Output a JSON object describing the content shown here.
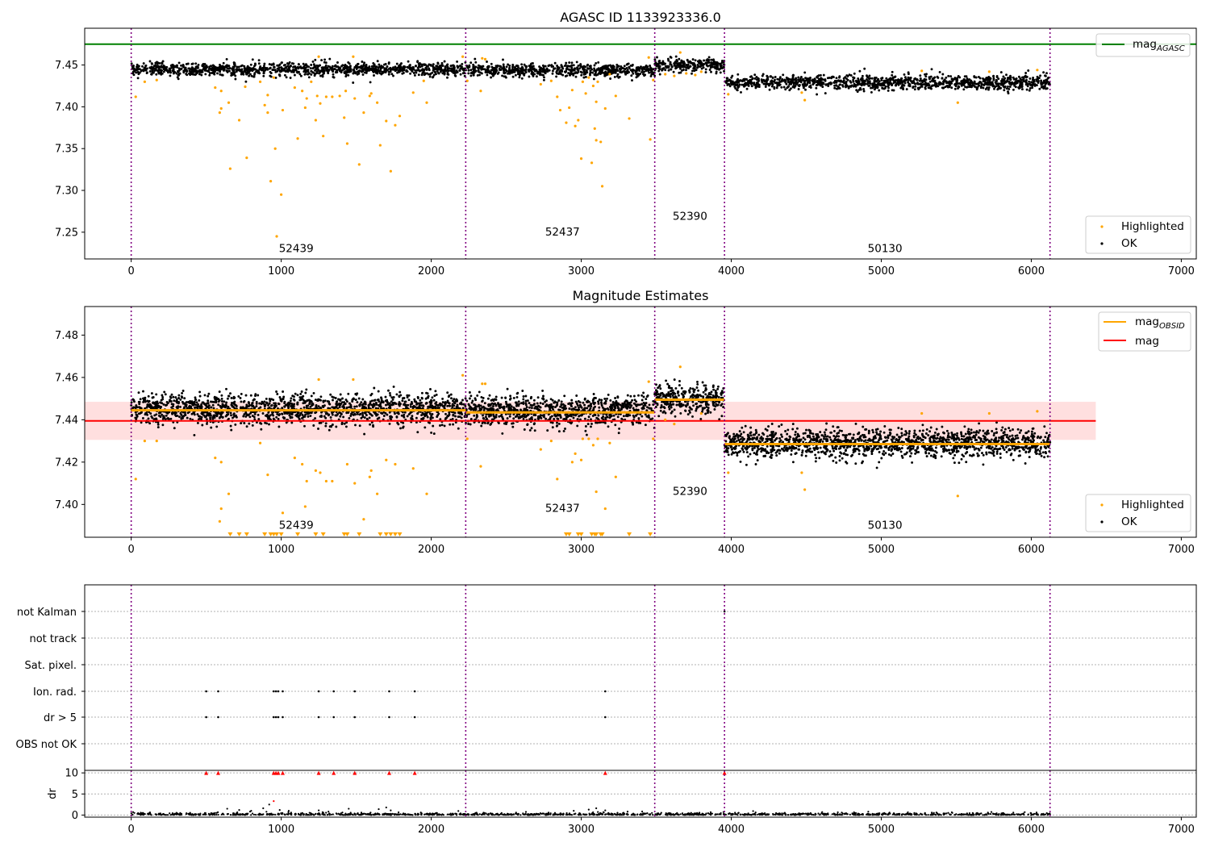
{
  "chart_data": [
    {
      "type": "scatter",
      "title": "AGASC ID 1133923336.0",
      "xlim": [
        -310,
        7100
      ],
      "ylim": [
        7.218,
        7.494
      ],
      "xticks": [
        0,
        1000,
        2000,
        3000,
        4000,
        5000,
        6000,
        7000
      ],
      "yticks": [
        7.25,
        7.3,
        7.35,
        7.4,
        7.45
      ],
      "obsid_boundaries": [
        0,
        2230,
        3490,
        3955,
        6125
      ],
      "obsids": [
        {
          "label": "52439",
          "x": 1100,
          "y": 7.226
        },
        {
          "label": "52437",
          "x": 2875,
          "y": 7.246
        },
        {
          "label": "52390",
          "x": 3725,
          "y": 7.265
        },
        {
          "label": "50130",
          "x": 5025,
          "y": 7.226
        }
      ],
      "reference_lines": [
        {
          "name": "mag_AGASC",
          "y": 7.475,
          "color": "#008000"
        }
      ],
      "series": [
        {
          "name": "Highlighted",
          "color": "#ffa500",
          "marker": "dot"
        },
        {
          "name": "OK",
          "color": "#000000",
          "marker": "dot"
        }
      ],
      "ok_segments": [
        {
          "x0": 0,
          "x1": 2230,
          "mean": 7.445,
          "spread": 0.007
        },
        {
          "x0": 2230,
          "x1": 3490,
          "mean": 7.444,
          "spread": 0.007
        },
        {
          "x0": 3490,
          "x1": 3955,
          "mean": 7.45,
          "spread": 0.007
        },
        {
          "x0": 3955,
          "x1": 6125,
          "mean": 7.429,
          "spread": 0.008
        }
      ],
      "highlighted_points": [
        [
          30,
          7.412
        ],
        [
          90,
          7.43
        ],
        [
          170,
          7.432
        ],
        [
          560,
          7.423
        ],
        [
          590,
          7.393
        ],
        [
          600,
          7.419
        ],
        [
          600,
          7.398
        ],
        [
          650,
          7.405
        ],
        [
          660,
          7.326
        ],
        [
          720,
          7.384
        ],
        [
          760,
          7.424
        ],
        [
          770,
          7.339
        ],
        [
          860,
          7.43
        ],
        [
          890,
          7.402
        ],
        [
          910,
          7.414
        ],
        [
          910,
          7.393
        ],
        [
          930,
          7.311
        ],
        [
          950,
          7.435
        ],
        [
          960,
          7.35
        ],
        [
          970,
          7.245
        ],
        [
          1000,
          7.295
        ],
        [
          1010,
          7.396
        ],
        [
          1090,
          7.423
        ],
        [
          1110,
          7.362
        ],
        [
          1140,
          7.419
        ],
        [
          1160,
          7.399
        ],
        [
          1170,
          7.41
        ],
        [
          1200,
          7.43
        ],
        [
          1230,
          7.384
        ],
        [
          1240,
          7.413
        ],
        [
          1250,
          7.46
        ],
        [
          1260,
          7.404
        ],
        [
          1280,
          7.365
        ],
        [
          1300,
          7.412
        ],
        [
          1340,
          7.412
        ],
        [
          1390,
          7.413
        ],
        [
          1420,
          7.387
        ],
        [
          1430,
          7.419
        ],
        [
          1440,
          7.356
        ],
        [
          1480,
          7.46
        ],
        [
          1490,
          7.41
        ],
        [
          1520,
          7.331
        ],
        [
          1550,
          7.393
        ],
        [
          1590,
          7.413
        ],
        [
          1600,
          7.416
        ],
        [
          1640,
          7.405
        ],
        [
          1660,
          7.354
        ],
        [
          1700,
          7.383
        ],
        [
          1730,
          7.323
        ],
        [
          1760,
          7.378
        ],
        [
          1790,
          7.389
        ],
        [
          1880,
          7.417
        ],
        [
          1950,
          7.431
        ],
        [
          1970,
          7.405
        ],
        [
          2210,
          7.46
        ],
        [
          2240,
          7.431
        ],
        [
          2330,
          7.419
        ],
        [
          2340,
          7.458
        ],
        [
          2360,
          7.457
        ],
        [
          2730,
          7.427
        ],
        [
          2800,
          7.431
        ],
        [
          2840,
          7.412
        ],
        [
          2860,
          7.396
        ],
        [
          2900,
          7.381
        ],
        [
          2920,
          7.399
        ],
        [
          2940,
          7.42
        ],
        [
          2960,
          7.377
        ],
        [
          2980,
          7.384
        ],
        [
          3000,
          7.338
        ],
        [
          3010,
          7.43
        ],
        [
          3030,
          7.416
        ],
        [
          3050,
          7.435
        ],
        [
          3070,
          7.333
        ],
        [
          3080,
          7.425
        ],
        [
          3090,
          7.374
        ],
        [
          3100,
          7.406
        ],
        [
          3100,
          7.36
        ],
        [
          3110,
          7.43
        ],
        [
          3130,
          7.358
        ],
        [
          3140,
          7.305
        ],
        [
          3160,
          7.398
        ],
        [
          3190,
          7.439
        ],
        [
          3230,
          7.413
        ],
        [
          3320,
          7.386
        ],
        [
          3450,
          7.459
        ],
        [
          3460,
          7.361
        ],
        [
          3480,
          7.432
        ],
        [
          3560,
          7.439
        ],
        [
          3620,
          7.437
        ],
        [
          3660,
          7.465
        ],
        [
          3700,
          7.44
        ],
        [
          3760,
          7.438
        ],
        [
          3800,
          7.442
        ],
        [
          3980,
          7.415
        ],
        [
          4470,
          7.417
        ],
        [
          4490,
          7.408
        ],
        [
          5270,
          7.443
        ],
        [
          5510,
          7.405
        ],
        [
          5720,
          7.442
        ],
        [
          6040,
          7.444
        ]
      ]
    },
    {
      "type": "scatter",
      "title": "Magnitude Estimates",
      "xlim": [
        -310,
        7100
      ],
      "ylim": [
        7.3845,
        7.4935
      ],
      "xticks": [
        0,
        1000,
        2000,
        3000,
        4000,
        5000,
        6000,
        7000
      ],
      "yticks": [
        7.4,
        7.42,
        7.44,
        7.46,
        7.48
      ],
      "obsid_boundaries": [
        0,
        2230,
        3490,
        3955,
        6125
      ],
      "obsids": [
        {
          "label": "52439",
          "x": 1100,
          "y": 7.3885
        },
        {
          "label": "52437",
          "x": 2875,
          "y": 7.3965
        },
        {
          "label": "52390",
          "x": 3725,
          "y": 7.4045
        },
        {
          "label": "50130",
          "x": 5025,
          "y": 7.3885
        }
      ],
      "mag": {
        "name": "mag",
        "y": 7.4395,
        "band": [
          7.4305,
          7.4485
        ],
        "color": "#ff0000",
        "x0": -310,
        "x1": 6430
      },
      "mag_obsid": [
        {
          "x0": 0,
          "x1": 2230,
          "y": 7.4445
        },
        {
          "x0": 2230,
          "x1": 3490,
          "y": 7.4435
        },
        {
          "x0": 3490,
          "x1": 3955,
          "y": 7.4495
        },
        {
          "x0": 3955,
          "x1": 6125,
          "y": 7.4285
        }
      ],
      "legend": [
        {
          "name": "mag_OBSID",
          "color": "#ffa500"
        },
        {
          "name": "mag",
          "color": "#ff0000"
        }
      ],
      "series": [
        {
          "name": "Highlighted",
          "color": "#ffa500",
          "marker": "dot"
        },
        {
          "name": "OK",
          "color": "#000000",
          "marker": "dot"
        }
      ],
      "ok_segments": [
        {
          "x0": 0,
          "x1": 2230,
          "mean": 7.445,
          "spread": 0.0065
        },
        {
          "x0": 2230,
          "x1": 3490,
          "mean": 7.444,
          "spread": 0.0065
        },
        {
          "x0": 3490,
          "x1": 3955,
          "mean": 7.45,
          "spread": 0.006
        },
        {
          "x0": 3955,
          "x1": 6125,
          "mean": 7.429,
          "spread": 0.006
        }
      ],
      "highlighted_points": [
        [
          30,
          7.412
        ],
        [
          90,
          7.43
        ],
        [
          170,
          7.43
        ],
        [
          560,
          7.422
        ],
        [
          590,
          7.392
        ],
        [
          600,
          7.42
        ],
        [
          600,
          7.398
        ],
        [
          650,
          7.405
        ],
        [
          860,
          7.429
        ],
        [
          910,
          7.414
        ],
        [
          1010,
          7.396
        ],
        [
          1090,
          7.422
        ],
        [
          1140,
          7.419
        ],
        [
          1160,
          7.399
        ],
        [
          1170,
          7.411
        ],
        [
          1230,
          7.416
        ],
        [
          1250,
          7.459
        ],
        [
          1260,
          7.415
        ],
        [
          1300,
          7.411
        ],
        [
          1340,
          7.411
        ],
        [
          1440,
          7.419
        ],
        [
          1480,
          7.459
        ],
        [
          1490,
          7.41
        ],
        [
          1550,
          7.393
        ],
        [
          1590,
          7.413
        ],
        [
          1600,
          7.416
        ],
        [
          1640,
          7.405
        ],
        [
          1700,
          7.421
        ],
        [
          1760,
          7.419
        ],
        [
          1880,
          7.417
        ],
        [
          1970,
          7.405
        ],
        [
          2210,
          7.461
        ],
        [
          2240,
          7.431
        ],
        [
          2330,
          7.418
        ],
        [
          2340,
          7.457
        ],
        [
          2360,
          7.457
        ],
        [
          2730,
          7.426
        ],
        [
          2800,
          7.43
        ],
        [
          2840,
          7.412
        ],
        [
          2940,
          7.42
        ],
        [
          2960,
          7.424
        ],
        [
          3000,
          7.421
        ],
        [
          3010,
          7.431
        ],
        [
          3050,
          7.431
        ],
        [
          3080,
          7.428
        ],
        [
          3100,
          7.406
        ],
        [
          3110,
          7.431
        ],
        [
          3160,
          7.398
        ],
        [
          3190,
          7.429
        ],
        [
          3230,
          7.413
        ],
        [
          3450,
          7.458
        ],
        [
          3480,
          7.431
        ],
        [
          3560,
          7.44
        ],
        [
          3620,
          7.438
        ],
        [
          3660,
          7.465
        ],
        [
          3800,
          7.443
        ],
        [
          3980,
          7.415
        ],
        [
          4470,
          7.415
        ],
        [
          4490,
          7.407
        ],
        [
          5270,
          7.443
        ],
        [
          5510,
          7.404
        ],
        [
          5720,
          7.443
        ],
        [
          6040,
          7.444
        ]
      ],
      "off_scale_lower_points": [
        660,
        720,
        770,
        890,
        930,
        950,
        970,
        1000,
        1110,
        1230,
        1280,
        1420,
        1440,
        1520,
        1660,
        1700,
        1730,
        1760,
        1790,
        2900,
        2920,
        2980,
        3000,
        3070,
        3090,
        3100,
        3130,
        3140,
        3320,
        3460
      ]
    },
    {
      "type": "scatter",
      "title": "",
      "xlim": [
        -310,
        7100
      ],
      "xticks": [
        0,
        1000,
        2000,
        3000,
        4000,
        5000,
        6000,
        7000
      ],
      "obsid_boundaries": [
        0,
        2230,
        3490,
        3955,
        6125
      ],
      "flag_rows": [
        "not Kalman",
        "not track",
        "Sat. pixel.",
        "Ion. rad.",
        "dr > 5",
        "OBS not OK"
      ],
      "flag_points": {
        "not Kalman": [
          3955
        ],
        "not track": [],
        "Sat. pixel.": [],
        "Ion. rad.": [
          500,
          580,
          950,
          965,
          980,
          1010,
          1250,
          1350,
          1490,
          1720,
          1890,
          3160
        ],
        "dr > 5": [
          500,
          580,
          950,
          965,
          980,
          1010,
          1250,
          1350,
          1490,
          1720,
          1890,
          3160
        ],
        "OBS not OK": []
      },
      "dr_panel": {
        "ylabel": "dr",
        "ylim": [
          -0.5,
          10.6
        ],
        "yticks": [
          0,
          5,
          10
        ],
        "clipped_value": 10,
        "clipped_points": [
          500,
          580,
          950,
          965,
          980,
          1010,
          1250,
          1350,
          1490,
          1720,
          1890,
          3160,
          3955
        ],
        "outliers": [
          [
            640,
            1.5
          ],
          [
            720,
            1.2
          ],
          [
            800,
            1.0
          ],
          [
            880,
            1.6
          ],
          [
            920,
            2.5
          ],
          [
            950,
            3.3
          ],
          [
            990,
            1.2
          ],
          [
            1050,
            1.0
          ],
          [
            1250,
            1.1
          ],
          [
            1450,
            1.5
          ],
          [
            1650,
            1.4
          ],
          [
            1700,
            1.8
          ],
          [
            1730,
            1.1
          ],
          [
            2950,
            1.0
          ],
          [
            3050,
            1.3
          ],
          [
            3100,
            1.6
          ],
          [
            3160,
            1.1
          ]
        ]
      }
    }
  ]
}
